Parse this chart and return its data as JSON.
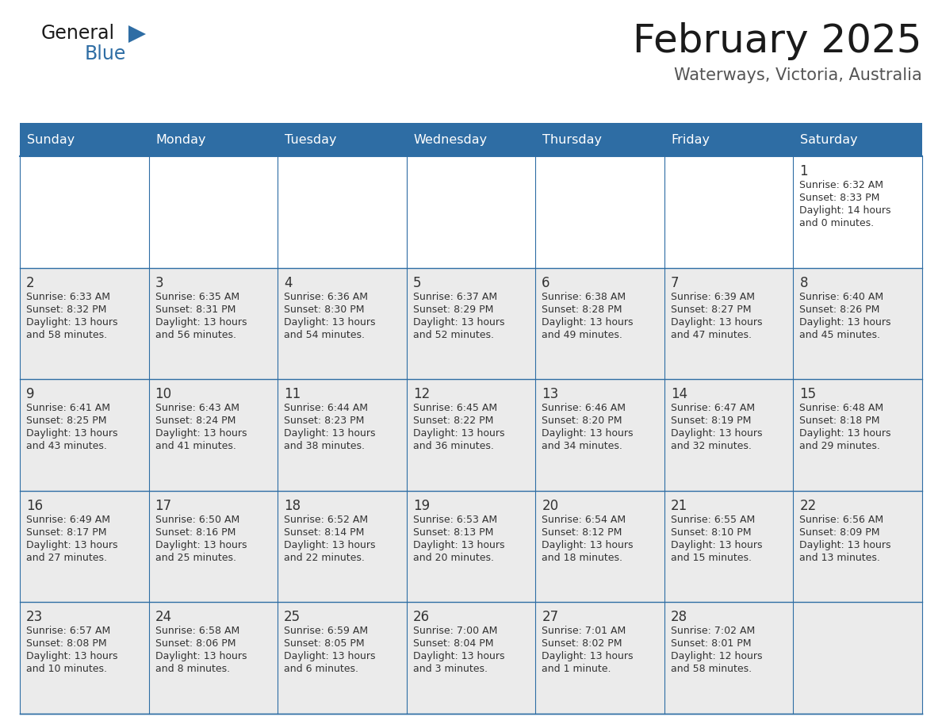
{
  "title": "February 2025",
  "subtitle": "Waterways, Victoria, Australia",
  "header_bg": "#2E6DA4",
  "header_text": "#FFFFFF",
  "cell_bg": "#EBEBEB",
  "cell_bg_white": "#FFFFFF",
  "border_color": "#2E6DA4",
  "day_headers": [
    "Sunday",
    "Monday",
    "Tuesday",
    "Wednesday",
    "Thursday",
    "Friday",
    "Saturday"
  ],
  "title_color": "#1a1a1a",
  "subtitle_color": "#555555",
  "day_num_color": "#333333",
  "cell_text_color": "#333333",
  "logo_general_color": "#1a1a1a",
  "logo_blue_color": "#2E6DA4",
  "logo_triangle_color": "#2E6DA4",
  "calendar": [
    [
      null,
      null,
      null,
      null,
      null,
      null,
      {
        "day": "1",
        "sunrise": "6:32 AM",
        "sunset": "8:33 PM",
        "daylight_line1": "Daylight: 14 hours",
        "daylight_line2": "and 0 minutes."
      }
    ],
    [
      {
        "day": "2",
        "sunrise": "6:33 AM",
        "sunset": "8:32 PM",
        "daylight_line1": "Daylight: 13 hours",
        "daylight_line2": "and 58 minutes."
      },
      {
        "day": "3",
        "sunrise": "6:35 AM",
        "sunset": "8:31 PM",
        "daylight_line1": "Daylight: 13 hours",
        "daylight_line2": "and 56 minutes."
      },
      {
        "day": "4",
        "sunrise": "6:36 AM",
        "sunset": "8:30 PM",
        "daylight_line1": "Daylight: 13 hours",
        "daylight_line2": "and 54 minutes."
      },
      {
        "day": "5",
        "sunrise": "6:37 AM",
        "sunset": "8:29 PM",
        "daylight_line1": "Daylight: 13 hours",
        "daylight_line2": "and 52 minutes."
      },
      {
        "day": "6",
        "sunrise": "6:38 AM",
        "sunset": "8:28 PM",
        "daylight_line1": "Daylight: 13 hours",
        "daylight_line2": "and 49 minutes."
      },
      {
        "day": "7",
        "sunrise": "6:39 AM",
        "sunset": "8:27 PM",
        "daylight_line1": "Daylight: 13 hours",
        "daylight_line2": "and 47 minutes."
      },
      {
        "day": "8",
        "sunrise": "6:40 AM",
        "sunset": "8:26 PM",
        "daylight_line1": "Daylight: 13 hours",
        "daylight_line2": "and 45 minutes."
      }
    ],
    [
      {
        "day": "9",
        "sunrise": "6:41 AM",
        "sunset": "8:25 PM",
        "daylight_line1": "Daylight: 13 hours",
        "daylight_line2": "and 43 minutes."
      },
      {
        "day": "10",
        "sunrise": "6:43 AM",
        "sunset": "8:24 PM",
        "daylight_line1": "Daylight: 13 hours",
        "daylight_line2": "and 41 minutes."
      },
      {
        "day": "11",
        "sunrise": "6:44 AM",
        "sunset": "8:23 PM",
        "daylight_line1": "Daylight: 13 hours",
        "daylight_line2": "and 38 minutes."
      },
      {
        "day": "12",
        "sunrise": "6:45 AM",
        "sunset": "8:22 PM",
        "daylight_line1": "Daylight: 13 hours",
        "daylight_line2": "and 36 minutes."
      },
      {
        "day": "13",
        "sunrise": "6:46 AM",
        "sunset": "8:20 PM",
        "daylight_line1": "Daylight: 13 hours",
        "daylight_line2": "and 34 minutes."
      },
      {
        "day": "14",
        "sunrise": "6:47 AM",
        "sunset": "8:19 PM",
        "daylight_line1": "Daylight: 13 hours",
        "daylight_line2": "and 32 minutes."
      },
      {
        "day": "15",
        "sunrise": "6:48 AM",
        "sunset": "8:18 PM",
        "daylight_line1": "Daylight: 13 hours",
        "daylight_line2": "and 29 minutes."
      }
    ],
    [
      {
        "day": "16",
        "sunrise": "6:49 AM",
        "sunset": "8:17 PM",
        "daylight_line1": "Daylight: 13 hours",
        "daylight_line2": "and 27 minutes."
      },
      {
        "day": "17",
        "sunrise": "6:50 AM",
        "sunset": "8:16 PM",
        "daylight_line1": "Daylight: 13 hours",
        "daylight_line2": "and 25 minutes."
      },
      {
        "day": "18",
        "sunrise": "6:52 AM",
        "sunset": "8:14 PM",
        "daylight_line1": "Daylight: 13 hours",
        "daylight_line2": "and 22 minutes."
      },
      {
        "day": "19",
        "sunrise": "6:53 AM",
        "sunset": "8:13 PM",
        "daylight_line1": "Daylight: 13 hours",
        "daylight_line2": "and 20 minutes."
      },
      {
        "day": "20",
        "sunrise": "6:54 AM",
        "sunset": "8:12 PM",
        "daylight_line1": "Daylight: 13 hours",
        "daylight_line2": "and 18 minutes."
      },
      {
        "day": "21",
        "sunrise": "6:55 AM",
        "sunset": "8:10 PM",
        "daylight_line1": "Daylight: 13 hours",
        "daylight_line2": "and 15 minutes."
      },
      {
        "day": "22",
        "sunrise": "6:56 AM",
        "sunset": "8:09 PM",
        "daylight_line1": "Daylight: 13 hours",
        "daylight_line2": "and 13 minutes."
      }
    ],
    [
      {
        "day": "23",
        "sunrise": "6:57 AM",
        "sunset": "8:08 PM",
        "daylight_line1": "Daylight: 13 hours",
        "daylight_line2": "and 10 minutes."
      },
      {
        "day": "24",
        "sunrise": "6:58 AM",
        "sunset": "8:06 PM",
        "daylight_line1": "Daylight: 13 hours",
        "daylight_line2": "and 8 minutes."
      },
      {
        "day": "25",
        "sunrise": "6:59 AM",
        "sunset": "8:05 PM",
        "daylight_line1": "Daylight: 13 hours",
        "daylight_line2": "and 6 minutes."
      },
      {
        "day": "26",
        "sunrise": "7:00 AM",
        "sunset": "8:04 PM",
        "daylight_line1": "Daylight: 13 hours",
        "daylight_line2": "and 3 minutes."
      },
      {
        "day": "27",
        "sunrise": "7:01 AM",
        "sunset": "8:02 PM",
        "daylight_line1": "Daylight: 13 hours",
        "daylight_line2": "and 1 minute."
      },
      {
        "day": "28",
        "sunrise": "7:02 AM",
        "sunset": "8:01 PM",
        "daylight_line1": "Daylight: 12 hours",
        "daylight_line2": "and 58 minutes."
      },
      null
    ]
  ]
}
